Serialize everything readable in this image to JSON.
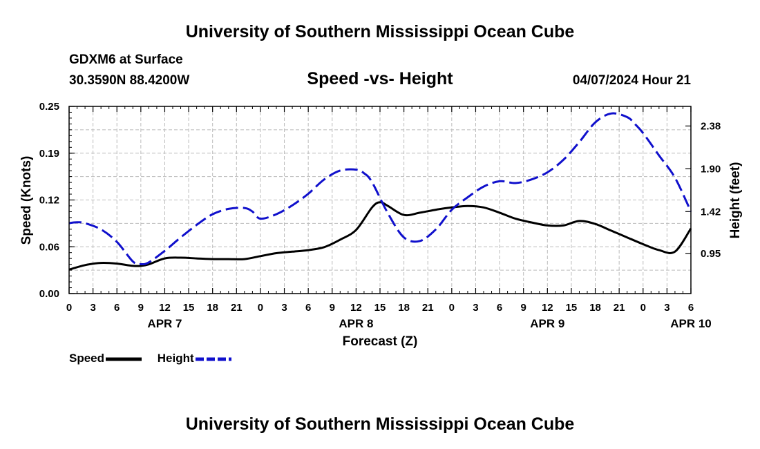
{
  "header": {
    "title": "University of Southern Mississippi Ocean Cube",
    "station": "GDXM6 at Surface",
    "coords": "30.3590N  88.4200W",
    "subtitle": "Speed -vs- Height",
    "datetime": "04/07/2024 Hour 21"
  },
  "footer": {
    "title": "University of Southern Mississippi Ocean Cube"
  },
  "colors": {
    "speed": "#000000",
    "height": "#1010cc",
    "grid": "#bbbbbb"
  },
  "legend": {
    "speed_label": "Speed",
    "height_label": "Height"
  },
  "chart_data": {
    "type": "line",
    "title": "Speed -vs- Height",
    "xlabel": "Forecast (Z)",
    "ylabel": "Speed (Knots)",
    "y2label": "Height (feet)",
    "x_range": [
      0,
      78
    ],
    "x_ticks": [
      0,
      3,
      6,
      9,
      12,
      15,
      18,
      21,
      24,
      27,
      30,
      33,
      36,
      39,
      42,
      45,
      48,
      51,
      54,
      57,
      60,
      63,
      66,
      69,
      72,
      75,
      78
    ],
    "x_tick_labels": [
      "0",
      "3",
      "6",
      "9",
      "12",
      "15",
      "18",
      "21",
      "0",
      "3",
      "6",
      "9",
      "12",
      "15",
      "18",
      "21",
      "0",
      "3",
      "6",
      "9",
      "12",
      "15",
      "18",
      "21",
      "0",
      "3",
      "6"
    ],
    "date_labels": [
      {
        "hour": 12,
        "label": "APR 7"
      },
      {
        "hour": 36,
        "label": "APR 8"
      },
      {
        "hour": 60,
        "label": "APR 9"
      },
      {
        "hour": 78,
        "label": "APR 10"
      }
    ],
    "y_range": [
      0,
      0.25
    ],
    "y_ticks": [
      0,
      0.0625,
      0.125,
      0.1875,
      0.25
    ],
    "y_tick_labels": [
      "0.00",
      "0.06",
      "0.12",
      "0.19",
      "0.25"
    ],
    "y2_range": [
      0.5,
      2.6
    ],
    "y2_ticks": [
      0.95,
      1.42,
      1.9,
      2.38
    ],
    "y2_tick_labels": [
      "0.95",
      "1.42",
      "1.90",
      "2.38"
    ],
    "series": [
      {
        "name": "Speed",
        "axis": "left",
        "x": [
          0,
          2,
          4,
          6,
          8,
          9,
          10,
          12,
          14,
          16,
          18,
          20,
          22,
          24,
          26,
          28,
          30,
          32,
          34,
          36,
          38,
          39,
          40,
          42,
          44,
          46,
          48,
          50,
          52,
          54,
          56,
          58,
          60,
          62,
          64,
          66,
          68,
          70,
          72,
          74,
          76,
          78
        ],
        "values": [
          0.032,
          0.038,
          0.041,
          0.04,
          0.037,
          0.037,
          0.039,
          0.047,
          0.048,
          0.047,
          0.046,
          0.046,
          0.046,
          0.05,
          0.054,
          0.056,
          0.058,
          0.062,
          0.072,
          0.085,
          0.115,
          0.122,
          0.117,
          0.105,
          0.108,
          0.112,
          0.115,
          0.117,
          0.115,
          0.108,
          0.1,
          0.095,
          0.091,
          0.091,
          0.097,
          0.093,
          0.084,
          0.075,
          0.066,
          0.058,
          0.056,
          0.087
        ]
      },
      {
        "name": "Height",
        "axis": "right",
        "x": [
          0,
          1,
          2,
          4,
          6,
          8,
          9,
          10,
          12,
          14,
          16,
          18,
          20,
          22,
          23,
          24,
          26,
          28,
          30,
          32,
          34,
          36,
          37,
          38,
          40,
          42,
          44,
          46,
          48,
          50,
          52,
          54,
          56,
          58,
          60,
          62,
          64,
          66,
          68,
          70,
          71,
          72,
          74,
          76,
          78
        ],
        "values": [
          1.29,
          1.3,
          1.29,
          1.22,
          1.08,
          0.86,
          0.83,
          0.85,
          0.98,
          1.13,
          1.27,
          1.39,
          1.45,
          1.46,
          1.42,
          1.34,
          1.39,
          1.49,
          1.62,
          1.78,
          1.88,
          1.89,
          1.85,
          1.75,
          1.4,
          1.13,
          1.09,
          1.22,
          1.44,
          1.58,
          1.7,
          1.76,
          1.74,
          1.78,
          1.86,
          2.0,
          2.2,
          2.42,
          2.52,
          2.48,
          2.4,
          2.3,
          2.05,
          1.8,
          1.42
        ]
      }
    ]
  }
}
